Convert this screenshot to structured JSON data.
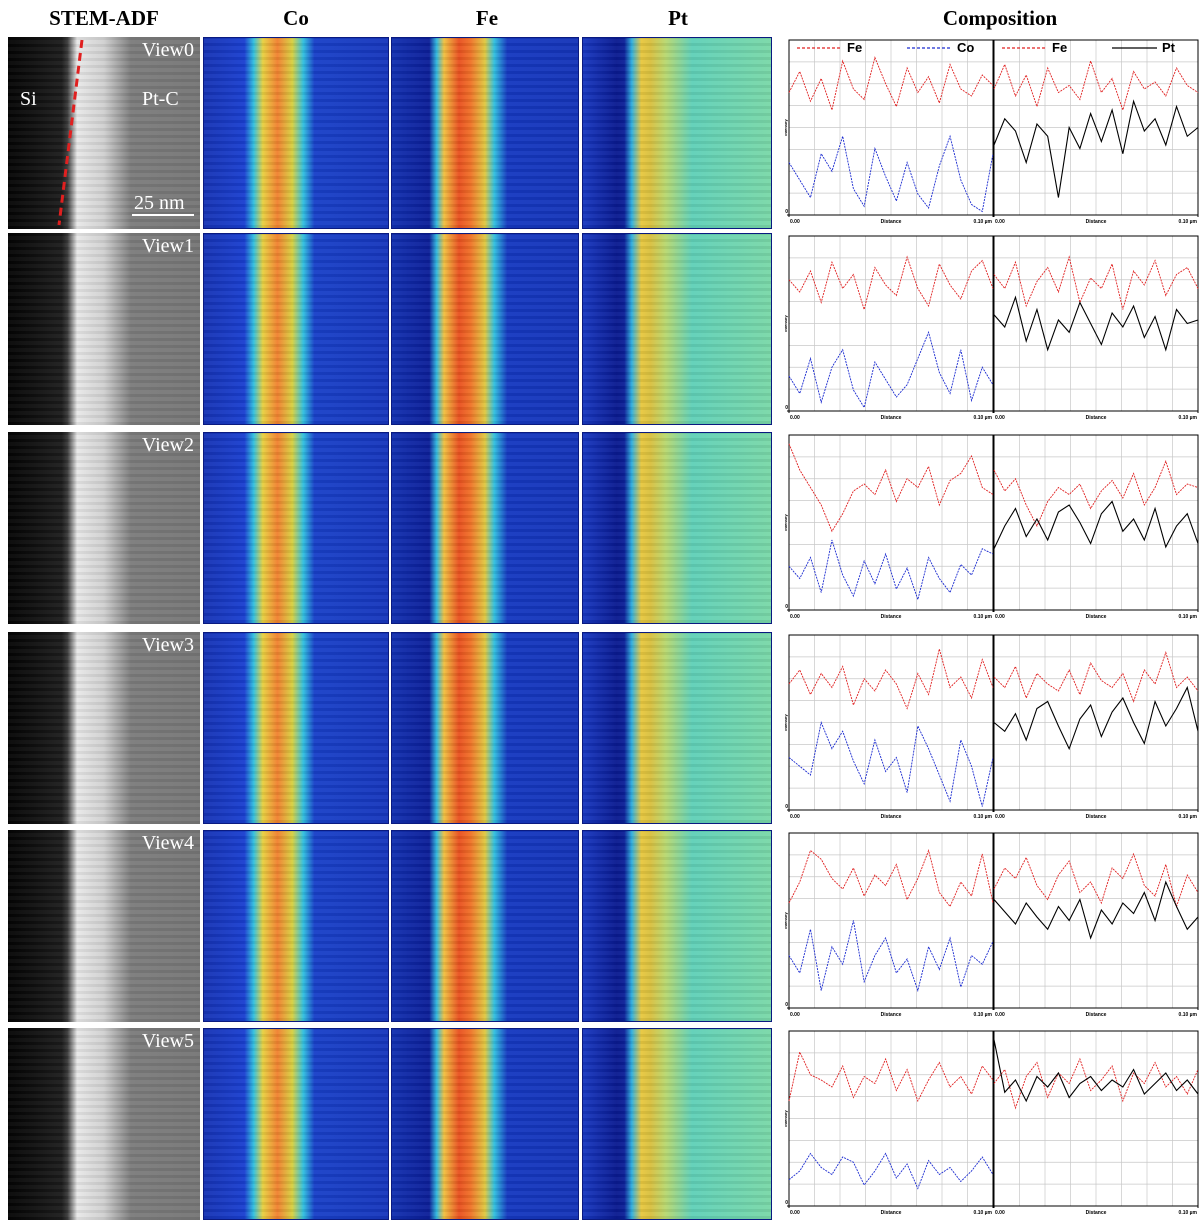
{
  "header": {
    "columns": [
      "STEM-ADF",
      "Co",
      "Fe",
      "Pt",
      "Composition"
    ]
  },
  "annotations": {
    "si": "Si",
    "ptc": "Pt-C",
    "scale": "25 nm"
  },
  "axis": {
    "x_label": "Distance",
    "y_label": "Intensity",
    "xlim": [
      0,
      0.1
    ],
    "xticks": [
      {
        "value": 0,
        "label": "0.00"
      },
      {
        "value": 0.1,
        "label": "0.10 µm"
      }
    ],
    "ylim": [
      0,
      100
    ],
    "yticks": [
      0
    ]
  },
  "rows": [
    {
      "label": "View0",
      "charts": [
        {
          "type": "line",
          "series": [
            {
              "name": "Fe",
              "color": "#e02020",
              "style": "dashed",
              "values": [
                70,
                82,
                65,
                78,
                60,
                88,
                72,
                66,
                90,
                75,
                62,
                84,
                70,
                79,
                64,
                86,
                72,
                68,
                80,
                74
              ]
            },
            {
              "name": "Co",
              "color": "#1a2ad0",
              "style": "dashed",
              "values": [
                30,
                20,
                10,
                35,
                25,
                45,
                15,
                5,
                38,
                22,
                8,
                30,
                12,
                4,
                28,
                45,
                20,
                6,
                2,
                35
              ]
            }
          ]
        },
        {
          "type": "line",
          "series": [
            {
              "name": "Fe",
              "color": "#e02020",
              "style": "dashed",
              "values": [
                72,
                86,
                68,
                80,
                62,
                84,
                70,
                74,
                66,
                88,
                70,
                78,
                60,
                82,
                72,
                76,
                68,
                84,
                74,
                70
              ]
            },
            {
              "name": "Pt",
              "color": "#000000",
              "style": "solid",
              "values": [
                40,
                55,
                48,
                30,
                52,
                45,
                10,
                50,
                38,
                58,
                42,
                60,
                35,
                65,
                48,
                55,
                40,
                62,
                45,
                50
              ]
            }
          ]
        }
      ]
    },
    {
      "label": "View1",
      "charts": [
        {
          "type": "line",
          "series": [
            {
              "color": "#e02020",
              "style": "dashed",
              "values": [
                75,
                68,
                80,
                62,
                85,
                70,
                78,
                58,
                82,
                72,
                66,
                88,
                70,
                60,
                84,
                72,
                64,
                80,
                86,
                70
              ]
            },
            {
              "color": "#1a2ad0",
              "style": "dashed",
              "values": [
                20,
                10,
                30,
                5,
                25,
                35,
                12,
                2,
                28,
                18,
                8,
                15,
                30,
                45,
                22,
                10,
                35,
                6,
                25,
                15
              ]
            }
          ]
        },
        {
          "type": "line",
          "series": [
            {
              "color": "#e02020",
              "style": "dashed",
              "values": [
                78,
                70,
                85,
                60,
                74,
                82,
                68,
                88,
                62,
                76,
                70,
                84,
                58,
                80,
                72,
                86,
                66,
                78,
                82,
                70
              ]
            },
            {
              "color": "#000000",
              "style": "solid",
              "values": [
                55,
                48,
                65,
                40,
                58,
                35,
                52,
                45,
                62,
                50,
                38,
                56,
                48,
                60,
                42,
                54,
                35,
                58,
                50,
                52
              ]
            }
          ]
        }
      ]
    },
    {
      "label": "View2",
      "charts": [
        {
          "type": "line",
          "series": [
            {
              "color": "#e02020",
              "style": "dashed",
              "values": [
                95,
                80,
                70,
                60,
                45,
                55,
                68,
                72,
                66,
                80,
                62,
                75,
                70,
                82,
                60,
                74,
                78,
                88,
                70,
                66
              ]
            },
            {
              "color": "#1a2ad0",
              "style": "dashed",
              "values": [
                25,
                18,
                30,
                10,
                40,
                20,
                8,
                28,
                15,
                32,
                12,
                24,
                6,
                30,
                18,
                10,
                26,
                20,
                35,
                32
              ]
            }
          ]
        },
        {
          "type": "line",
          "series": [
            {
              "color": "#e02020",
              "style": "dashed",
              "values": [
                80,
                68,
                75,
                60,
                48,
                62,
                70,
                66,
                72,
                58,
                68,
                74,
                64,
                78,
                60,
                70,
                85,
                66,
                72,
                70
              ]
            },
            {
              "color": "#000000",
              "style": "solid",
              "values": [
                35,
                48,
                58,
                42,
                52,
                40,
                56,
                60,
                50,
                38,
                55,
                62,
                45,
                52,
                40,
                58,
                36,
                48,
                55,
                38
              ]
            }
          ]
        }
      ]
    },
    {
      "label": "View3",
      "charts": [
        {
          "type": "line",
          "series": [
            {
              "color": "#e02020",
              "style": "dashed",
              "values": [
                72,
                80,
                66,
                78,
                70,
                82,
                60,
                75,
                68,
                80,
                72,
                58,
                78,
                66,
                92,
                70,
                76,
                64,
                86,
                70
              ]
            },
            {
              "color": "#1a2ad0",
              "style": "dashed",
              "values": [
                30,
                25,
                20,
                50,
                35,
                45,
                28,
                15,
                40,
                22,
                30,
                10,
                48,
                35,
                20,
                5,
                40,
                25,
                2,
                30
              ]
            }
          ]
        },
        {
          "type": "line",
          "series": [
            {
              "color": "#e02020",
              "style": "dashed",
              "values": [
                76,
                70,
                82,
                64,
                78,
                72,
                68,
                80,
                66,
                84,
                74,
                70,
                78,
                62,
                80,
                72,
                90,
                70,
                76,
                68
              ]
            },
            {
              "color": "#000000",
              "style": "solid",
              "values": [
                50,
                45,
                55,
                40,
                58,
                62,
                48,
                35,
                52,
                60,
                42,
                56,
                64,
                50,
                38,
                62,
                48,
                58,
                70,
                45
              ]
            }
          ]
        }
      ]
    },
    {
      "label": "View4",
      "charts": [
        {
          "type": "line",
          "series": [
            {
              "color": "#e02020",
              "style": "dashed",
              "values": [
                60,
                72,
                90,
                85,
                74,
                68,
                80,
                64,
                76,
                70,
                82,
                62,
                74,
                90,
                66,
                58,
                72,
                64,
                88,
                60
              ]
            },
            {
              "color": "#1a2ad0",
              "style": "dashed",
              "values": [
                30,
                20,
                45,
                10,
                35,
                25,
                50,
                15,
                30,
                40,
                20,
                28,
                10,
                35,
                22,
                40,
                12,
                30,
                25,
                38
              ]
            }
          ]
        },
        {
          "type": "line",
          "series": [
            {
              "color": "#e02020",
              "style": "dashed",
              "values": [
                68,
                80,
                74,
                86,
                70,
                62,
                76,
                84,
                66,
                72,
                60,
                80,
                74,
                88,
                70,
                64,
                82,
                58,
                76,
                66
              ]
            },
            {
              "color": "#000000",
              "style": "solid",
              "values": [
                62,
                55,
                48,
                60,
                52,
                45,
                58,
                50,
                62,
                40,
                56,
                48,
                60,
                54,
                66,
                50,
                72,
                58,
                45,
                52
              ]
            }
          ]
        }
      ]
    },
    {
      "label": "View5",
      "charts": [
        {
          "type": "line",
          "series": [
            {
              "color": "#e02020",
              "style": "dashed",
              "values": [
                60,
                88,
                75,
                72,
                68,
                80,
                62,
                74,
                70,
                84,
                66,
                78,
                60,
                72,
                82,
                68,
                74,
                64,
                80,
                72
              ]
            },
            {
              "color": "#1a2ad0",
              "style": "dashed",
              "values": [
                15,
                20,
                30,
                22,
                18,
                28,
                25,
                12,
                20,
                30,
                16,
                24,
                10,
                26,
                18,
                22,
                14,
                20,
                28,
                18
              ]
            }
          ]
        },
        {
          "type": "line",
          "series": [
            {
              "color": "#e02020",
              "style": "dashed",
              "values": [
                70,
                78,
                56,
                74,
                82,
                62,
                76,
                70,
                84,
                66,
                72,
                80,
                60,
                76,
                70,
                82,
                68,
                74,
                64,
                78
              ]
            },
            {
              "color": "#000000",
              "style": "solid",
              "values": [
                95,
                65,
                72,
                60,
                74,
                68,
                76,
                62,
                70,
                74,
                66,
                72,
                68,
                78,
                64,
                70,
                76,
                66,
                72,
                64
              ]
            }
          ]
        }
      ]
    }
  ]
}
